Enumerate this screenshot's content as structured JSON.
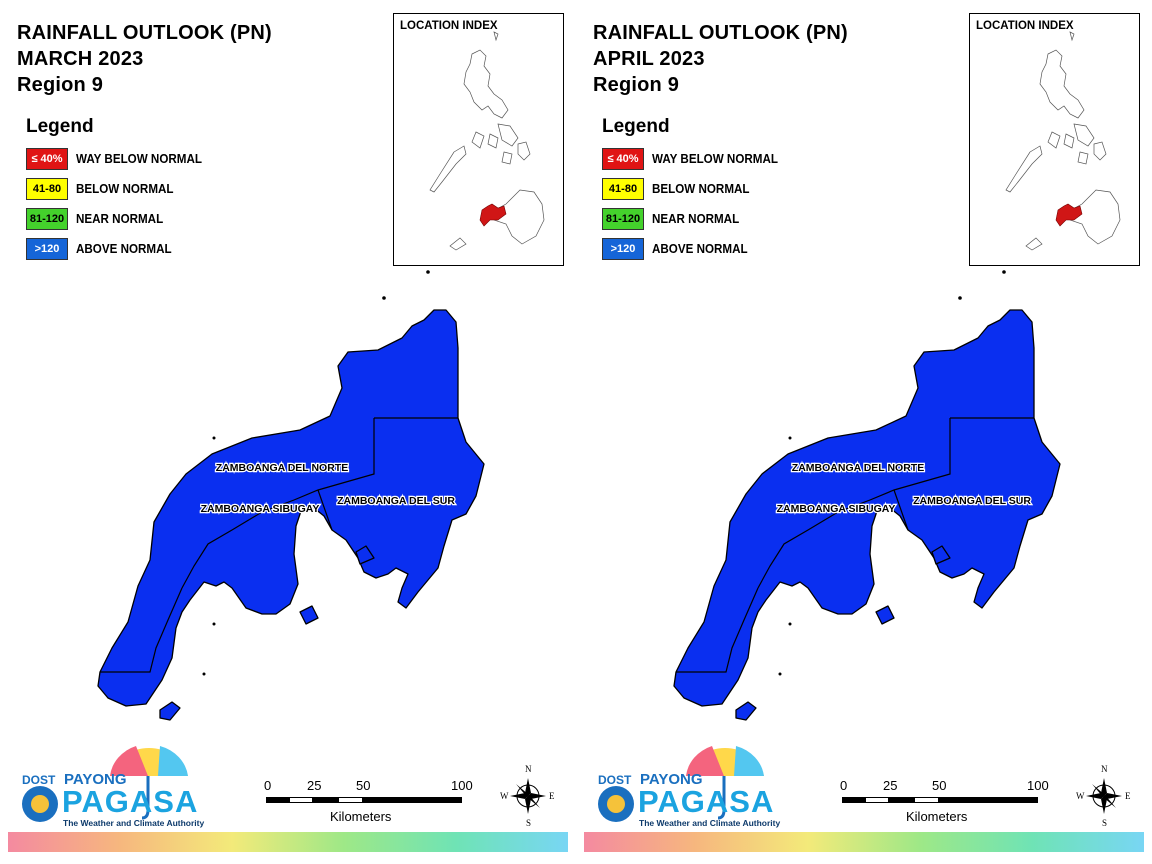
{
  "panels": [
    {
      "title_line1": "RAINFALL OUTLOOK (PN)",
      "title_line2": "MARCH 2023",
      "title_line3": "Region 9"
    },
    {
      "title_line1": "RAINFALL OUTLOOK (PN)",
      "title_line2": "APRIL 2023",
      "title_line3": "Region 9"
    }
  ],
  "legend": {
    "heading": "Legend",
    "items": [
      {
        "range": "≤ 40%",
        "label": "WAY BELOW NORMAL",
        "color": "#e01414",
        "text_color": "#ffffff"
      },
      {
        "range": "41-80",
        "label": "BELOW NORMAL",
        "color": "#ffff00",
        "text_color": "#000000"
      },
      {
        "range": "81-120",
        "label": "NEAR NORMAL",
        "color": "#44d22c",
        "text_color": "#000000"
      },
      {
        "range": ">120",
        "label": "ABOVE NORMAL",
        "color": "#1565d8",
        "text_color": "#ffffff"
      }
    ]
  },
  "location_index": {
    "title": "LOCATION INDEX",
    "country_color": "#ffffff",
    "highlight_color": "#d01616"
  },
  "map": {
    "fill_color": "#0a2ff0",
    "provinces": [
      {
        "name": "ZAMBOANGA DEL NORTE",
        "category": ">120"
      },
      {
        "name": "ZAMBOANGA SIBUGAY",
        "category": ">120"
      },
      {
        "name": "ZAMBOANGA DEL SUR",
        "category": ">120"
      }
    ]
  },
  "logo": {
    "dost": "DOST",
    "payong": "PAYONG",
    "pagasa": "PAGASA",
    "tagline": "The Weather and Climate Authority"
  },
  "scalebar": {
    "ticks": [
      "0",
      "25",
      "50",
      "100"
    ],
    "units": "Kilometers"
  },
  "compass": {
    "n": "N",
    "s": "S",
    "e": "E",
    "w": "W"
  }
}
